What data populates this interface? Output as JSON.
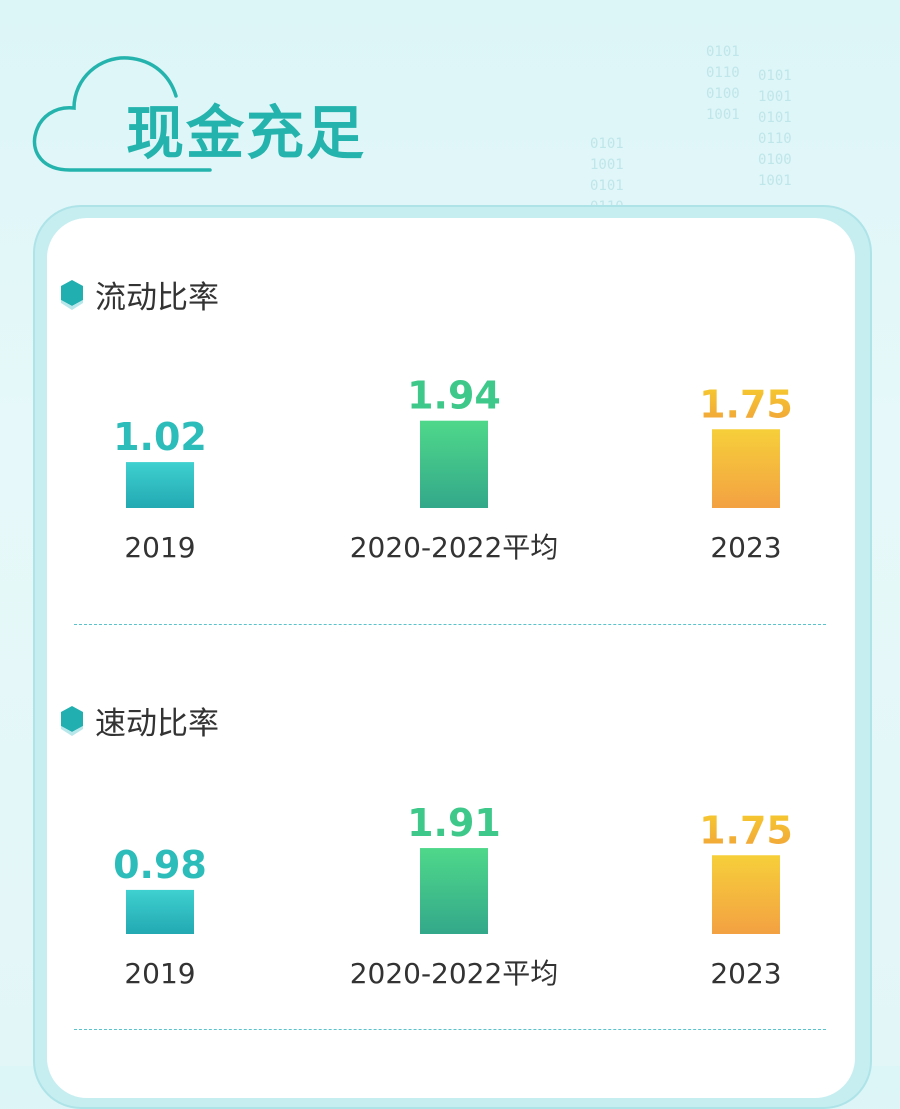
{
  "header": {
    "title": "现金充足"
  },
  "decor": {
    "binary_columns": [
      [
        "0101",
        "0110",
        "0100",
        "1001"
      ],
      [
        "0101",
        "1001",
        "0101",
        "0110",
        "0100",
        "1001"
      ],
      [
        "0101",
        "1001",
        "0101",
        "0110",
        "0100",
        "1001"
      ],
      [
        "0101"
      ]
    ]
  },
  "colors": {
    "teal": "#2cbdbb",
    "green": "#3ec98a",
    "orange": "#f2ad2c",
    "title": "#25b3ad",
    "text": "#333333"
  },
  "chart_data": [
    {
      "type": "bar",
      "title": "流动比率",
      "categories": [
        "2019",
        "2020-2022平均",
        "2023"
      ],
      "values": [
        1.02,
        1.94,
        1.75
      ],
      "value_labels": [
        "1.02",
        "1.94",
        "1.75"
      ],
      "colors": [
        "teal",
        "green",
        "orange"
      ]
    },
    {
      "type": "bar",
      "title": "速动比率",
      "categories": [
        "2019",
        "2020-2022平均",
        "2023"
      ],
      "values": [
        0.98,
        1.91,
        1.75
      ],
      "value_labels": [
        "0.98",
        "1.91",
        "1.75"
      ],
      "colors": [
        "teal",
        "green",
        "orange"
      ]
    }
  ]
}
